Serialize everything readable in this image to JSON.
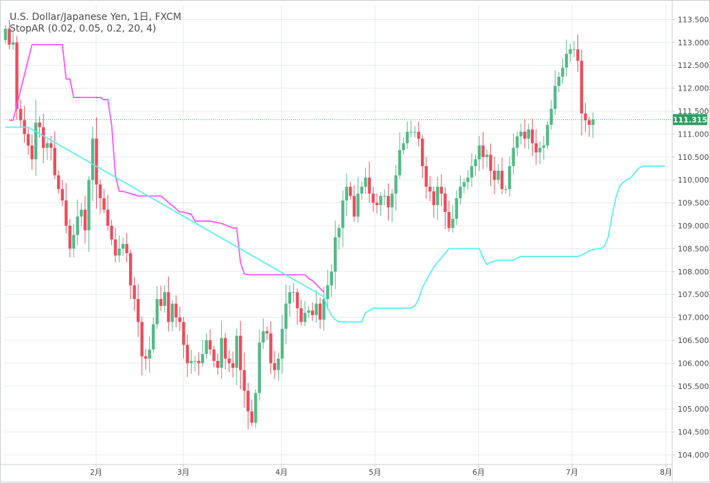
{
  "chart_data": {
    "type": "candlestick",
    "title": "U.S. Dollar/Japanese Yen, 1日, FXCM",
    "indicator": "StopAR (0.02, 0.05, 0.2, 20, 4)",
    "ylim": [
      103.75,
      114.0
    ],
    "y_ticks": [
      "113.500",
      "113.000",
      "112.500",
      "112.000",
      "111.500",
      "111.000",
      "110.500",
      "110.000",
      "109.500",
      "109.000",
      "108.500",
      "108.000",
      "107.500",
      "107.000",
      "106.500",
      "106.000",
      "105.500",
      "105.000",
      "104.500",
      "104.000"
    ],
    "x_ticks": [
      "2月",
      "3月",
      "4月",
      "5月",
      "6月",
      "7月",
      "8月"
    ],
    "last_price": "111.315",
    "last_price_value": 111.315,
    "colors": {
      "up": "#53b987",
      "down": "#eb4d5c",
      "stop_short": "#ff4fff",
      "stop_long": "#55f0f0",
      "last_price": "#2e9e5e",
      "grid": "#e6eaee",
      "axis_text": "#4a4a4a"
    },
    "candle_closes": [
      113.3,
      112.95,
      113.0,
      111.55,
      111.3,
      111.0,
      110.75,
      110.45,
      111.25,
      111.15,
      110.7,
      110.8,
      110.7,
      110.1,
      109.8,
      109.55,
      109.0,
      108.5,
      108.8,
      109.2,
      109.35,
      108.9,
      110.0,
      110.9,
      109.9,
      109.6,
      109.35,
      109.0,
      108.7,
      108.35,
      108.5,
      108.6,
      108.4,
      107.7,
      107.4,
      106.9,
      106.15,
      106.1,
      106.3,
      106.85,
      107.4,
      107.25,
      107.55,
      106.9,
      107.3,
      107.0,
      106.9,
      106.4,
      106.0,
      106.05,
      106.05,
      106.0,
      106.2,
      106.5,
      106.3,
      106.05,
      105.9,
      106.55,
      106.1,
      106.0,
      105.9,
      106.6,
      105.85,
      105.4,
      104.95,
      104.7,
      105.35,
      106.45,
      106.7,
      106.65,
      106.0,
      105.85,
      106.1,
      106.75,
      107.3,
      107.55,
      107.55,
      107.2,
      106.9,
      107.1,
      107.15,
      107.05,
      107.3,
      106.95,
      107.4,
      107.7,
      108.0,
      108.75,
      108.95,
      109.55,
      109.85,
      109.65,
      109.2,
      109.7,
      109.85,
      110.05,
      109.7,
      109.5,
      109.45,
      109.65,
      109.65,
      109.4,
      109.7,
      110.1,
      110.65,
      110.8,
      111.05,
      111.05,
      111.05,
      110.9,
      110.3,
      109.85,
      109.75,
      109.45,
      109.85,
      109.7,
      109.3,
      108.95,
      109.15,
      109.6,
      109.85,
      109.95,
      110.05,
      110.3,
      110.45,
      110.75,
      110.5,
      110.55,
      110.2,
      110.0,
      110.2,
      109.8,
      109.8,
      110.3,
      110.7,
      110.95,
      111.05,
      110.9,
      111.1,
      110.8,
      110.6,
      110.7,
      110.75,
      111.2,
      111.55,
      112.05,
      112.25,
      112.45,
      112.75,
      112.85,
      112.85,
      112.6,
      111.45,
      111.3,
      111.2,
      111.315
    ],
    "stop_short": {
      "x": [
        1,
        2,
        7,
        8,
        14,
        15,
        16,
        17,
        18,
        19,
        25,
        26,
        27,
        28,
        29,
        30,
        31,
        35,
        36,
        37,
        39,
        41,
        46,
        47,
        49,
        50,
        53,
        54,
        57,
        60,
        61,
        62,
        63,
        64,
        68,
        69,
        72,
        73,
        75,
        77,
        79,
        80,
        81,
        84
      ],
      "y": [
        111.3,
        111.3,
        112.95,
        112.95,
        112.95,
        112.95,
        112.2,
        112.2,
        111.8,
        111.8,
        111.8,
        111.75,
        111.75,
        111.2,
        110.1,
        109.75,
        109.75,
        109.65,
        109.65,
        109.65,
        109.65,
        109.65,
        109.3,
        109.3,
        109.25,
        109.1,
        109.1,
        109.1,
        109.05,
        108.95,
        108.95,
        108.2,
        107.95,
        107.93,
        107.93,
        107.93,
        107.93,
        107.93,
        107.93,
        107.93,
        107.93,
        107.85,
        107.8,
        107.55
      ]
    },
    "stop_long": {
      "x": [
        0,
        5,
        6,
        84,
        85,
        86,
        87,
        88,
        94,
        95,
        96,
        97,
        98,
        99,
        107,
        108,
        109,
        110,
        111,
        112,
        113,
        114,
        115,
        116,
        117,
        125,
        126,
        127,
        128,
        129,
        130,
        134,
        135,
        136,
        137,
        151,
        152,
        153,
        154,
        155,
        156,
        157,
        158,
        159,
        160,
        161,
        162,
        163,
        164,
        165,
        166,
        167,
        168,
        169,
        170,
        171,
        172,
        173,
        174
      ],
      "y": [
        111.15,
        111.15,
        111.15,
        107.45,
        107.2,
        107.05,
        106.95,
        106.9,
        106.9,
        107.1,
        107.15,
        107.2,
        107.2,
        107.2,
        107.2,
        107.25,
        107.4,
        107.65,
        107.8,
        107.95,
        108.1,
        108.2,
        108.3,
        108.4,
        108.5,
        108.5,
        108.3,
        108.15,
        108.2,
        108.23,
        108.25,
        108.25,
        108.3,
        108.33,
        108.33,
        108.33,
        108.36,
        108.4,
        108.45,
        108.48,
        108.5,
        108.5,
        108.55,
        108.75,
        109.2,
        109.6,
        109.85,
        109.95,
        110.0,
        110.05,
        110.15,
        110.25,
        110.3,
        110.3,
        110.3,
        110.3,
        110.3,
        110.3,
        110.3
      ]
    }
  }
}
